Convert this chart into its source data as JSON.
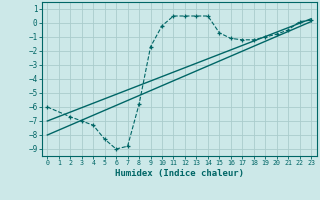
{
  "xlabel": "Humidex (Indice chaleur)",
  "xlim": [
    -0.5,
    23.5
  ],
  "ylim": [
    -9.5,
    1.5
  ],
  "bg_color": "#cce8e8",
  "grid_color": "#aacccc",
  "line_color": "#006666",
  "xticks": [
    0,
    1,
    2,
    3,
    4,
    5,
    6,
    7,
    8,
    9,
    10,
    11,
    12,
    13,
    14,
    15,
    16,
    17,
    18,
    19,
    20,
    21,
    22,
    23
  ],
  "yticks": [
    1,
    0,
    -1,
    -2,
    -3,
    -4,
    -5,
    -6,
    -7,
    -8,
    -9
  ],
  "dashed_x": [
    0,
    2,
    3,
    4,
    5,
    6,
    7,
    8,
    9,
    10,
    11,
    12,
    13,
    14,
    15,
    16,
    17,
    18,
    19,
    20,
    21,
    22,
    23
  ],
  "dashed_y": [
    -6.0,
    -6.7,
    -7.0,
    -7.3,
    -8.3,
    -9.0,
    -8.8,
    -5.8,
    -1.7,
    -0.2,
    0.5,
    0.5,
    0.5,
    0.5,
    -0.7,
    -1.1,
    -1.2,
    -1.2,
    -1.0,
    -0.8,
    -0.5,
    0.1,
    0.2
  ],
  "line1_x": [
    0,
    23
  ],
  "line1_y": [
    -8.0,
    0.1
  ],
  "line2_x": [
    0,
    23
  ],
  "line2_y": [
    -7.0,
    0.3
  ]
}
